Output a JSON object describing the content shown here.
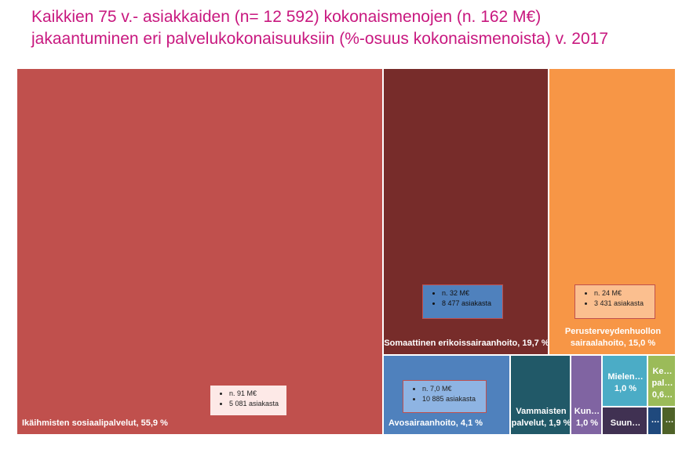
{
  "title": {
    "line1": "Kaikkien 75 v.- asiakkaiden (n= 12 592) kokonaismenojen (n. 162 M€)",
    "line2": "jakaantuminen eri palvelukokonaisuuksiin (%-osuus kokonaismenoista) v. 2017"
  },
  "chart_data": {
    "type": "treemap",
    "title": "Kaikkien 75 v.- asiakkaiden (n= 12 592) kokonaismenojen (n. 162 M€) jakaantuminen eri palvelukokonaisuuksiin (%-osuus kokonaismenoista) v. 2017",
    "unit": "%",
    "items": [
      {
        "label": "Ikäihmisten sosiaalipalvelut, 55,9 %",
        "value": 55.9,
        "color": "#c0504d",
        "notes": [
          "n. 91 M€",
          "5 081 asiakasta"
        ]
      },
      {
        "label": "Somaattinen erikoissairaanhoito, 19,7 %",
        "value": 19.7,
        "color": "#772c2a",
        "notes": [
          "n. 32 M€",
          "8 477 asiakasta"
        ]
      },
      {
        "label": "Perusterveydenhuollon sairaalahoito, 15,0 %",
        "value": 15.0,
        "color": "#f79646",
        "notes": [
          "n. 24 M€",
          "3 431 asiakasta"
        ]
      },
      {
        "label": "Avosairaanhoito, 4,1 %",
        "value": 4.1,
        "color": "#4f81bd",
        "notes": [
          "n. 7,0 M€",
          "10 885 asiakasta"
        ]
      },
      {
        "label": "Vammaisten palvelut, 1,9 %",
        "value": 1.9,
        "color": "#215968",
        "notes": []
      },
      {
        "label": "Kun… 1,0 %",
        "value": 1.0,
        "color": "#8064a2",
        "notes": []
      },
      {
        "label": "Mielen… 1,0 %",
        "value": 1.0,
        "color": "#4bacc6",
        "notes": []
      },
      {
        "label": "Suun…",
        "value": 0.8,
        "color": "#403152",
        "notes": []
      },
      {
        "label": "Ke… pal… 0,6…",
        "value": 0.6,
        "color": "#9bbb59",
        "notes": []
      },
      {
        "label": "…",
        "value": 0.4,
        "color": "#1f497d",
        "notes": []
      },
      {
        "label": "…",
        "value": 0.3,
        "color": "#4f6228",
        "notes": []
      }
    ]
  }
}
